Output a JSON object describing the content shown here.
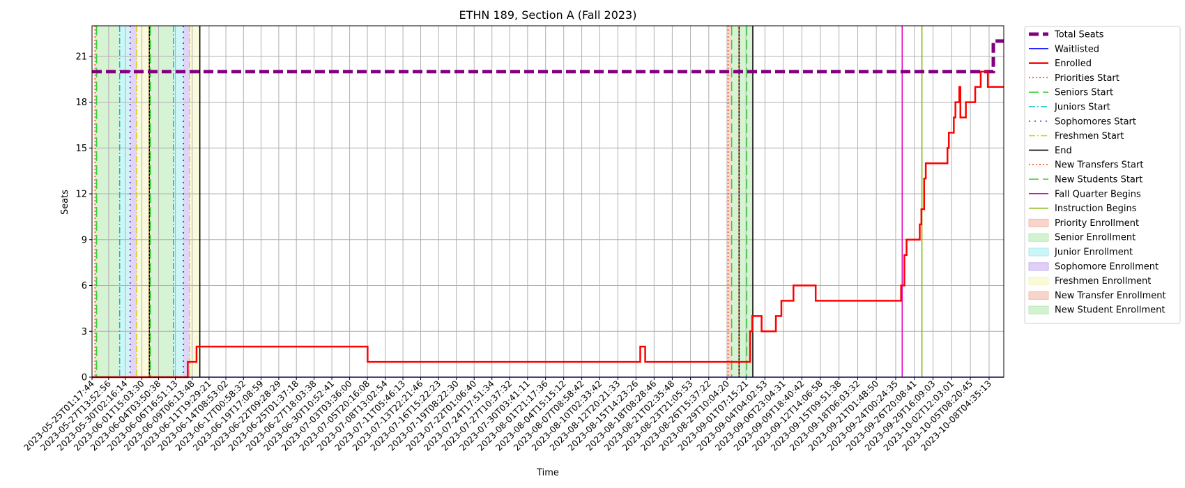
{
  "chart_data": {
    "type": "line",
    "title": "ETHN 189, Section A (Fall 2023)",
    "xlabel": "Time",
    "ylabel": "Seats",
    "ylim": [
      0,
      23
    ],
    "xlim": [
      "2023-05-25T01:17:44",
      "2023-10-10T10:00:00"
    ],
    "y_ticks": [
      0,
      3,
      6,
      9,
      12,
      15,
      18,
      21
    ],
    "x_ticks": [
      "2023-05-25T01:17:44",
      "2023-05-27T13:52:56",
      "2023-05-30T02:16:14",
      "2023-06-01T15:03:30",
      "2023-06-04T03:50:38",
      "2023-06-06T16:51:13",
      "2023-06-09T06:13:48",
      "2023-06-11T19:29:21",
      "2023-06-14T08:53:02",
      "2023-06-17T00:58:32",
      "2023-06-19T17:08:59",
      "2023-06-22T09:28:29",
      "2023-06-25T01:37:18",
      "2023-06-27T18:03:38",
      "2023-06-30T10:52:41",
      "2023-07-03T03:36:00",
      "2023-07-05T20:16:08",
      "2023-07-08T13:02:54",
      "2023-07-11T05:46:13",
      "2023-07-13T22:21:46",
      "2023-07-16T15:22:23",
      "2023-07-19T08:22:30",
      "2023-07-22T01:06:40",
      "2023-07-24T17:51:34",
      "2023-07-27T10:37:32",
      "2023-07-30T03:41:11",
      "2023-08-01T21:17:36",
      "2023-08-04T15:15:12",
      "2023-08-07T08:58:42",
      "2023-08-10T02:33:42",
      "2023-08-12T20:21:33",
      "2023-08-15T14:23:26",
      "2023-08-18T08:28:46",
      "2023-08-21T02:35:48",
      "2023-08-23T21:05:53",
      "2023-08-26T15:37:22",
      "2023-08-29T10:04:20",
      "2023-09-01T07:15:21",
      "2023-09-04T04:02:53",
      "2023-09-06T23:04:31",
      "2023-09-09T18:40:42",
      "2023-09-12T14:06:58",
      "2023-09-15T09:51:38",
      "2023-09-18T06:03:32",
      "2023-09-21T01:48:50",
      "2023-09-24T00:24:35",
      "2023-09-26T20:08:41",
      "2023-09-29T16:09:03",
      "2023-10-02T12:03:01",
      "2023-10-05T08:20:45",
      "2023-10-08T04:35:13"
    ],
    "grid": true,
    "legend_position": "outside-right",
    "legend": [
      {
        "label": "Total Seats",
        "kind": "line",
        "color": "#800080",
        "dash": "dashed",
        "width": 5
      },
      {
        "label": "Waitlisted",
        "kind": "line",
        "color": "#1f1fff",
        "dash": "solid",
        "width": 1.5
      },
      {
        "label": "Enrolled",
        "kind": "line",
        "color": "#ff0000",
        "dash": "solid",
        "width": 2.5
      },
      {
        "label": "Priorities Start",
        "kind": "line",
        "color": "#ff4500",
        "dash": "dotted",
        "width": 1.5
      },
      {
        "label": "Seniors Start",
        "kind": "line",
        "color": "#32cd32",
        "dash": "dashed",
        "width": 1.5
      },
      {
        "label": "Juniors Start",
        "kind": "line",
        "color": "#00bcd4",
        "dash": "dashdot",
        "width": 1.5
      },
      {
        "label": "Sophomores Start",
        "kind": "line",
        "color": "#5b00e0",
        "dash": "loosedot",
        "width": 1.5
      },
      {
        "label": "Freshmen Start",
        "kind": "line",
        "color": "#d4d400",
        "dash": "dashdot",
        "width": 1.5
      },
      {
        "label": "End",
        "kind": "line",
        "color": "#000000",
        "dash": "solid",
        "width": 1.5
      },
      {
        "label": "New Transfers Start",
        "kind": "line",
        "color": "#ff4500",
        "dash": "dotted",
        "width": 1.5
      },
      {
        "label": "New Students Start",
        "kind": "line",
        "color": "#32cd32",
        "dash": "dashed",
        "width": 1.5
      },
      {
        "label": "Fall Quarter Begins",
        "kind": "line",
        "color": "#e000c0",
        "dash": "solid",
        "width": 1.5
      },
      {
        "label": "Instruction Begins",
        "kind": "line",
        "color": "#7cb300",
        "dash": "solid",
        "width": 1.5
      },
      {
        "label": "Priority Enrollment",
        "kind": "patch",
        "color": "#f4b9a8"
      },
      {
        "label": "Senior Enrollment",
        "kind": "patch",
        "color": "#b5eab0"
      },
      {
        "label": "Junior Enrollment",
        "kind": "patch",
        "color": "#a8eef0"
      },
      {
        "label": "Sophomore Enrollment",
        "kind": "patch",
        "color": "#c9b0f0"
      },
      {
        "label": "Freshmen Enrollment",
        "kind": "patch",
        "color": "#f6f6c0"
      },
      {
        "label": "New Transfer Enrollment",
        "kind": "patch",
        "color": "#f4b9a8"
      },
      {
        "label": "New Student Enrollment",
        "kind": "patch",
        "color": "#b5eab0"
      }
    ],
    "spans": [
      {
        "name": "Priority Enrollment",
        "start": "2023-05-25T12:00:00",
        "end": "2023-05-25T18:00:00",
        "color": "#f4b9a8"
      },
      {
        "name": "Senior Enrollment",
        "start": "2023-05-25T18:00:00",
        "end": "2023-05-29T06:00:00",
        "color": "#b5eab0"
      },
      {
        "name": "Junior Enrollment",
        "start": "2023-05-29T06:00:00",
        "end": "2023-05-30T20:00:00",
        "color": "#a8eef0"
      },
      {
        "name": "Sophomore Enrollment",
        "start": "2023-05-30T20:00:00",
        "end": "2023-05-31T20:00:00",
        "color": "#c9b0f0"
      },
      {
        "name": "Freshmen Enrollment",
        "start": "2023-05-31T20:00:00",
        "end": "2023-06-02T18:00:00",
        "color": "#f6f6c0"
      },
      {
        "name": "Priority Enrollment",
        "start": "2023-06-02T18:00:00",
        "end": "2023-06-02T22:00:00",
        "color": "#f4b9a8"
      },
      {
        "name": "Senior Enrollment",
        "start": "2023-06-02T22:00:00",
        "end": "2023-06-06T10:00:00",
        "color": "#b5eab0"
      },
      {
        "name": "Junior Enrollment",
        "start": "2023-06-06T10:00:00",
        "end": "2023-06-07T22:00:00",
        "color": "#a8eef0"
      },
      {
        "name": "Sophomore Enrollment",
        "start": "2023-06-07T22:00:00",
        "end": "2023-06-08T20:00:00",
        "color": "#c9b0f0"
      },
      {
        "name": "Freshmen Enrollment",
        "start": "2023-06-08T20:00:00",
        "end": "2023-06-10T10:00:00",
        "color": "#f6f6c0"
      },
      {
        "name": "New Transfer Enrollment",
        "start": "2023-08-29T14:00:00",
        "end": "2023-08-30T03:00:00",
        "color": "#f4b9a8"
      },
      {
        "name": "New Student Enrollment",
        "start": "2023-08-30T03:00:00",
        "end": "2023-09-02T08:00:00",
        "color": "#b5eab0"
      }
    ],
    "vlines": [
      {
        "type": "Priorities Start",
        "x": "2023-05-25T12:00:00"
      },
      {
        "type": "Seniors Start",
        "x": "2023-05-25T18:00:00"
      },
      {
        "type": "Juniors Start",
        "x": "2023-05-29T06:00:00"
      },
      {
        "type": "Sophomores Start",
        "x": "2023-05-30T20:00:00"
      },
      {
        "type": "Freshmen Start",
        "x": "2023-05-31T20:00:00"
      },
      {
        "type": "End",
        "x": "2023-06-02T18:00:00"
      },
      {
        "type": "Priorities Start",
        "x": "2023-06-02T18:00:00"
      },
      {
        "type": "Seniors Start",
        "x": "2023-06-02T22:00:00"
      },
      {
        "type": "Juniors Start",
        "x": "2023-06-06T10:00:00"
      },
      {
        "type": "Sophomores Start",
        "x": "2023-06-07T22:00:00"
      },
      {
        "type": "Freshmen Start",
        "x": "2023-06-08T20:00:00"
      },
      {
        "type": "End",
        "x": "2023-06-10T10:00:00"
      },
      {
        "type": "New Transfers Start",
        "x": "2023-08-29T14:00:00"
      },
      {
        "type": "New Students Start",
        "x": "2023-08-30T03:00:00"
      },
      {
        "type": "End",
        "x": "2023-08-31T06:00:00"
      },
      {
        "type": "New Transfers Start",
        "x": "2023-08-31T06:00:00"
      },
      {
        "type": "New Students Start",
        "x": "2023-09-01T10:00:00"
      },
      {
        "type": "End",
        "x": "2023-09-02T08:00:00"
      },
      {
        "type": "Fall Quarter Begins",
        "x": "2023-09-25T00:00:00"
      },
      {
        "type": "Instruction Begins",
        "x": "2023-09-28T00:00:00"
      }
    ],
    "series": [
      {
        "name": "Total Seats",
        "step": false,
        "points": [
          [
            "2023-05-25T01:17:44",
            20
          ],
          [
            "2023-10-08T20:00:00",
            20
          ],
          [
            "2023-10-08T20:00:00",
            22
          ],
          [
            "2023-10-10T10:00:00",
            22
          ]
        ]
      },
      {
        "name": "Waitlisted",
        "step": true,
        "points": [
          [
            "2023-05-25T01:17:44",
            0
          ],
          [
            "2023-10-10T10:00:00",
            0
          ]
        ]
      },
      {
        "name": "Enrolled",
        "step": true,
        "points": [
          [
            "2023-05-25T01:17:44",
            0
          ],
          [
            "2023-06-08T14:00:00",
            1
          ],
          [
            "2023-06-09T22:00:00",
            2
          ],
          [
            "2023-07-05T21:00:00",
            1
          ],
          [
            "2023-08-16T06:00:00",
            2
          ],
          [
            "2023-08-17T00:00:00",
            1
          ],
          [
            "2023-09-01T22:00:00",
            3
          ],
          [
            "2023-09-02T06:00:00",
            4
          ],
          [
            "2023-09-03T16:00:00",
            3
          ],
          [
            "2023-09-05T20:00:00",
            4
          ],
          [
            "2023-09-06T16:00:00",
            5
          ],
          [
            "2023-09-08T12:00:00",
            6
          ],
          [
            "2023-09-11T21:00:00",
            5
          ],
          [
            "2023-09-24T20:00:00",
            6
          ],
          [
            "2023-09-25T08:00:00",
            8
          ],
          [
            "2023-09-25T16:00:00",
            9
          ],
          [
            "2023-09-27T16:00:00",
            10
          ],
          [
            "2023-09-27T22:00:00",
            11
          ],
          [
            "2023-09-28T08:00:00",
            13
          ],
          [
            "2023-09-28T14:00:00",
            14
          ],
          [
            "2023-10-01T21:00:00",
            15
          ],
          [
            "2023-10-02T02:00:00",
            16
          ],
          [
            "2023-10-02T20:00:00",
            17
          ],
          [
            "2023-10-03T02:00:00",
            18
          ],
          [
            "2023-10-03T16:00:00",
            19
          ],
          [
            "2023-10-03T20:00:00",
            17
          ],
          [
            "2023-10-04T16:00:00",
            18
          ],
          [
            "2023-10-06T02:00:00",
            19
          ],
          [
            "2023-10-06T22:00:00",
            20
          ],
          [
            "2023-10-08T00:00:00",
            19
          ],
          [
            "2023-10-10T10:00:00",
            19
          ]
        ]
      }
    ]
  }
}
